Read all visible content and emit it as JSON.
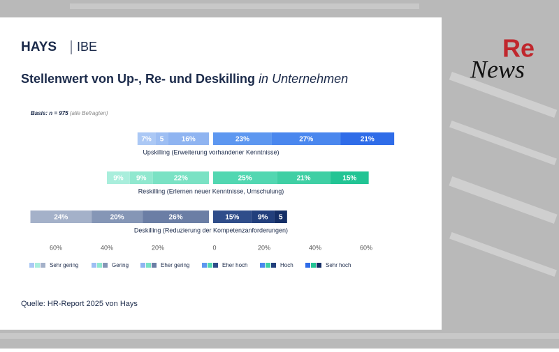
{
  "brand": "HAYS",
  "brand_partner": "IBE",
  "overlay_logo": {
    "top": "Re",
    "bottom": "News"
  },
  "chart_data": {
    "type": "diverging-bar",
    "title": "Stellenwert von Up-, Re- und Deskilling",
    "title_emphasis": "in Unternehmen",
    "basis": "Basis: n = 975",
    "basis_note": "(alle Befragten)",
    "categories": [
      "Upskilling (Erweiterung vorhandener Kenntnisse)",
      "Reskilling (Erlernen neuer Kenntnisse, Umschulung)",
      "Deskilling (Reduzierung der Kompetenzanforderungen)"
    ],
    "series": [
      {
        "name": "Sehr gering",
        "colors": [
          "#abc8f5",
          "#a9eedc",
          "#a4b1c9"
        ],
        "values": [
          7,
          9,
          24
        ],
        "value_labels": [
          "7%",
          "9%",
          "24%"
        ]
      },
      {
        "name": "Gering",
        "colors": [
          "#9dbef3",
          "#90e8cf",
          "#8596b6"
        ],
        "values": [
          5,
          9,
          20
        ],
        "value_labels": [
          "5",
          "9%",
          "20%"
        ]
      },
      {
        "name": "Eher gering",
        "colors": [
          "#8fb4f1",
          "#7ae2c4",
          "#6b7ea5"
        ],
        "values": [
          16,
          22,
          26
        ],
        "value_labels": [
          "16%",
          "22%",
          "26%"
        ]
      },
      {
        "name": "Eher hoch",
        "colors": [
          "#5d97f0",
          "#52d7b1",
          "#2f4d8a"
        ],
        "values": [
          23,
          25,
          15
        ],
        "value_labels": [
          "23%",
          "25%",
          "15%"
        ]
      },
      {
        "name": "Hoch",
        "colors": [
          "#4a87ee",
          "#3fcfa4",
          "#223f7c"
        ],
        "values": [
          27,
          21,
          9
        ],
        "value_labels": [
          "27%",
          "21%",
          "9%"
        ]
      },
      {
        "name": "Sehr hoch",
        "colors": [
          "#2f6ce8",
          "#22c494",
          "#142e66"
        ],
        "values": [
          21,
          15,
          5
        ],
        "value_labels": [
          "21%",
          "15%",
          "5"
        ]
      }
    ],
    "xlim": [
      -75,
      75
    ],
    "xticks": [
      {
        "value": -60,
        "label": "60%"
      },
      {
        "value": -40,
        "label": "40%"
      },
      {
        "value": -20,
        "label": "20%"
      },
      0,
      {
        "value": 20,
        "label": "20%"
      },
      {
        "value": 40,
        "label": "40%"
      },
      {
        "value": 60,
        "label": "60%"
      }
    ],
    "source": "Quelle: HR-Report 2025 von Hays"
  }
}
